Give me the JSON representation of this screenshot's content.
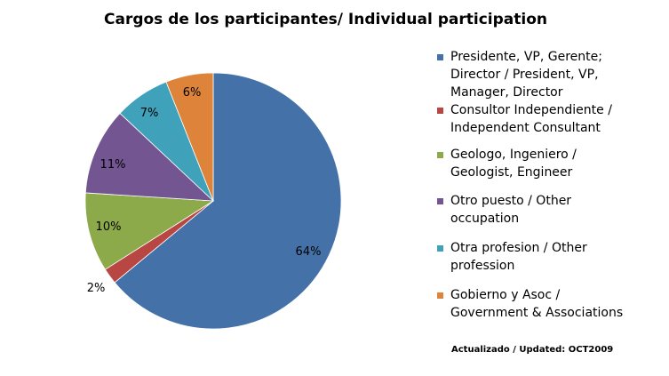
{
  "chart_data": {
    "type": "pie",
    "title": "Cargos de los participantes/ Individual participation",
    "slices": [
      {
        "label": "Presidente, VP, Gerente; Director / President, VP, Manager, Director",
        "value": 64,
        "value_label": "64%",
        "color": "#4472A8"
      },
      {
        "label": "Consultor Independiente / Independent Consultant",
        "value": 2,
        "value_label": "2%",
        "color": "#B84643"
      },
      {
        "label": "Geologo, Ingeniero / Geologist, Engineer",
        "value": 10,
        "value_label": "10%",
        "color": "#8DAA4A"
      },
      {
        "label": "Otro puesto / Other occupation",
        "value": 11,
        "value_label": "11%",
        "color": "#735592"
      },
      {
        "label": "Otra profesion  / Other profession",
        "value": 7,
        "value_label": "7%",
        "color": "#3FA1BA"
      },
      {
        "label": "Gobierno y Asoc / Government & Associations",
        "value": 6,
        "value_label": "6%",
        "color": "#DE843A"
      }
    ],
    "legend_position": "right"
  },
  "footnote": "Actualizado / Updated: OCT2009"
}
